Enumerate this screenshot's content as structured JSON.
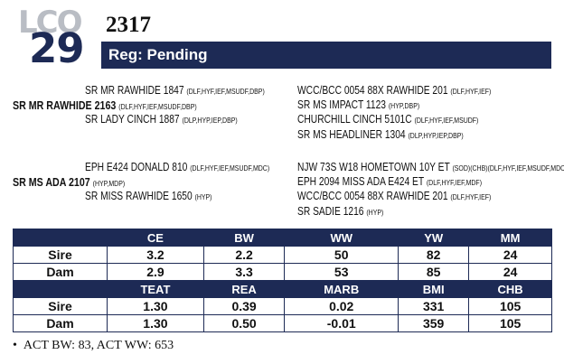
{
  "header": {
    "watermark": "LCO",
    "lot_number": "29",
    "tag_number": "2317",
    "registration": "Reg: Pending"
  },
  "pedigree": {
    "sire": {
      "name": "SR MR RAWHIDE 2163",
      "abbr": "(DLF,HYF,IEF,MSUDF,DBP)",
      "sire": {
        "name": "SR MR RAWHIDE 1847",
        "abbr": "(DLF,HYF,IEF,MSUDF,DBP)"
      },
      "dam": {
        "name": "SR LADY CINCH 1887",
        "abbr": "(DLP,HYP,IEP,DBP)"
      },
      "sire_sire": {
        "name": "WCC/BCC 0054 88X RAWHIDE 201",
        "abbr": "(DLF,HYF,IEF)"
      },
      "sire_dam": {
        "name": "SR MS IMPACT 1123",
        "abbr": "(HYP,DBP)"
      },
      "dam_sire": {
        "name": "CHURCHILL CINCH 5101C",
        "abbr": "(DLF,HYF,IEF,MSUDF)"
      },
      "dam_dam": {
        "name": "SR MS HEADLINER 1304",
        "abbr": "(DLP,HYP,IEP,DBP)"
      }
    },
    "dam": {
      "name": "SR MS ADA 2107",
      "abbr": "(HYP,MDP)",
      "sire": {
        "name": "EPH E424 DONALD 810",
        "abbr": "(DLF,HYF,IEF,MSUDF,MDC)"
      },
      "dam": {
        "name": "SR MISS RAWHIDE 1650",
        "abbr": "(HYP)"
      },
      "sire_sire": {
        "name": "NJW 73S W18 HOMETOWN 10Y ET",
        "abbr": "(SOD)(CHB)(DLF,HYF,IEF,MSUDF,MDC)"
      },
      "sire_dam": {
        "name": "EPH 2094 MISS ADA E424 ET",
        "abbr": "(DLF,HYF,IEF,MDF)"
      },
      "dam_sire": {
        "name": "WCC/BCC 0054 88X RAWHIDE 201",
        "abbr": "(DLF,HYF,IEF)"
      },
      "dam_dam": {
        "name": "SR SADIE 1216",
        "abbr": "(HYP)"
      }
    }
  },
  "epd_table": {
    "headers1": [
      "CE",
      "BW",
      "WW",
      "YW",
      "MM"
    ],
    "rows1": [
      {
        "label": "Sire",
        "values": [
          "3.2",
          "2.2",
          "50",
          "82",
          "24"
        ]
      },
      {
        "label": "Dam",
        "values": [
          "2.9",
          "3.3",
          "53",
          "85",
          "24"
        ]
      }
    ],
    "headers2": [
      "TEAT",
      "REA",
      "MARB",
      "BMI",
      "CHB"
    ],
    "rows2": [
      {
        "label": "Sire",
        "values": [
          "1.30",
          "0.39",
          "0.02",
          "331",
          "105"
        ]
      },
      {
        "label": "Dam",
        "values": [
          "1.30",
          "0.50",
          "-0.01",
          "359",
          "105"
        ]
      }
    ]
  },
  "actuals": {
    "bullet": "•",
    "text": "ACT BW: 83, ACT WW: 653"
  },
  "colors": {
    "navy": "#1d2a55",
    "watermark_gray": "#b9bdc4"
  }
}
